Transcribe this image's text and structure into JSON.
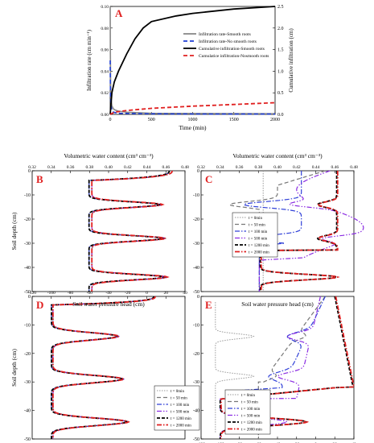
{
  "chart_data": [
    {
      "panel": "A",
      "type": "line",
      "xlabel": "Time (min)",
      "ylabel": "Infiltration rate (cm min⁻¹)",
      "y2label": "Cumulative infiltration (cm)",
      "xlim": [
        0,
        2000
      ],
      "ylim": [
        0,
        0.1
      ],
      "y2lim": [
        0,
        2.5
      ],
      "xticks": [
        0,
        500,
        1000,
        1500,
        2000
      ],
      "yticks": [
        0,
        0.02,
        0.04,
        0.06,
        0.08,
        0.1
      ],
      "yticklabels": [
        "0.00",
        "0.02",
        "0.04",
        "0.06",
        "0.08",
        "0.10"
      ],
      "y2ticks": [
        0,
        0.5,
        1,
        1.5,
        2,
        2.5
      ],
      "y2ticklabels": [
        "0.0",
        "0.5",
        "1.0",
        "1.5",
        "2.0",
        "2.5"
      ],
      "legend_position": "center-right",
      "series": [
        {
          "name": "Infiltration rate-Smooth roots",
          "axis": "left",
          "color": "#888888",
          "dash": "solid",
          "x": [
            0,
            2,
            5,
            10,
            20,
            40,
            60,
            100,
            200,
            500,
            1000,
            1500,
            2000
          ],
          "y": [
            0.1,
            0.06,
            0.03,
            0.015,
            0.008,
            0.005,
            0.004,
            0.003,
            0.002,
            0.001,
            0.0008,
            0.0007,
            0.0006
          ]
        },
        {
          "name": "Infiltration rate-No smooth roots",
          "axis": "left",
          "color": "#1f3fd6",
          "dash": "dash",
          "x": [
            0,
            2,
            5,
            10,
            20,
            40,
            100,
            500,
            1000,
            1500,
            2000
          ],
          "y": [
            0.05,
            0.03,
            0.015,
            0.008,
            0.004,
            0.002,
            0.001,
            0.0005,
            0.0004,
            0.0003,
            0.0003
          ]
        },
        {
          "name": "Cumulative infiltration-Smooth roots",
          "axis": "right",
          "color": "#000000",
          "dash": "solid",
          "x": [
            0,
            20,
            50,
            100,
            200,
            300,
            400,
            500,
            800,
            1000,
            1500,
            2000
          ],
          "y": [
            0,
            0.5,
            0.75,
            1.0,
            1.4,
            1.75,
            2.0,
            2.15,
            2.28,
            2.34,
            2.44,
            2.5
          ]
        },
        {
          "name": "Cumulatice infiltration-Nosmooth roots",
          "axis": "right",
          "color": "#e02020",
          "dash": "dash",
          "x": [
            0,
            50,
            200,
            500,
            1000,
            1500,
            2000
          ],
          "y": [
            0,
            0.05,
            0.09,
            0.14,
            0.19,
            0.23,
            0.27
          ]
        }
      ]
    },
    {
      "panel": "B",
      "type": "line",
      "top_axis_label": "Volumetric water content (cm³ cm⁻³)",
      "ylabel": "Soil depth (cm)",
      "xlim": [
        0.32,
        0.48
      ],
      "ylim": [
        -50,
        0
      ],
      "xticks": [
        0.32,
        0.34,
        0.36,
        0.38,
        0.4,
        0.42,
        0.44,
        0.46,
        0.48
      ],
      "xticklabels": [
        "0.32",
        "0.34",
        "0.36",
        "0.38",
        "0.40",
        "0.42",
        "0.44",
        "0.46",
        "0.48"
      ],
      "yticks": [
        0,
        -10,
        -20,
        -30,
        -40,
        -50
      ],
      "profile": {
        "base": 0.381,
        "top_value": 0.465,
        "top_depth": 4,
        "peaks": [
          [
            14,
            0.455
          ],
          [
            28,
            0.458
          ],
          [
            44,
            0.46
          ]
        ],
        "peak_width": 1.6
      },
      "legend": null
    },
    {
      "panel": "C",
      "type": "line",
      "top_axis_label": "Volumetric water content (cm³ cm⁻³)",
      "xlim": [
        0.32,
        0.48
      ],
      "ylim": [
        -50,
        0
      ],
      "xticks": [
        0.32,
        0.34,
        0.36,
        0.38,
        0.4,
        0.42,
        0.44,
        0.46,
        0.48
      ],
      "xticklabels": [
        "0.32",
        "0.34",
        "0.36",
        "0.38",
        "0.40",
        "0.42",
        "0.44",
        "0.46",
        "0.48"
      ],
      "yticks": [
        0,
        -10,
        -20,
        -30,
        -40,
        -50
      ],
      "legend_position": "bottom-left",
      "legend": [
        "t = 0min",
        "t = 50 min",
        "t = 100 min",
        "t = 500 min",
        "t = 1200 min",
        "t = 2000 min"
      ]
    },
    {
      "panel": "D",
      "type": "line",
      "bottom_axis_label": "Soil water pressure head (cm)",
      "ylabel": "Soil depth (cm)",
      "xlim": [
        -120,
        40
      ],
      "ylim": [
        -50,
        0
      ],
      "xticks": [
        -120,
        -100,
        -80,
        -60,
        -40,
        -20,
        0,
        20,
        40
      ],
      "yticks": [
        0,
        -10,
        -20,
        -30,
        -40,
        -50
      ],
      "profile": {
        "base": -99,
        "top_value": 8,
        "top_depth": 3,
        "peaks": [
          [
            14,
            -30
          ],
          [
            29,
            -25
          ],
          [
            44,
            -20
          ]
        ],
        "peak_width": 1.8
      },
      "legend_position": "bottom-right",
      "legend": [
        "t = 0min",
        "t = 50 min",
        "t = 100 min",
        "t = 500 min",
        "t = 1200 min",
        "t = 2000 min"
      ]
    },
    {
      "panel": "E",
      "type": "line",
      "xlim": [
        -120,
        40
      ],
      "ylim": [
        -50,
        0
      ],
      "xticks": [
        -120,
        -100,
        -80,
        -60,
        -40,
        -20,
        0,
        20,
        40
      ],
      "yticks": [
        0,
        -10,
        -20,
        -30,
        -40,
        -50
      ],
      "legend_position": "bottom-left",
      "legend": [
        "t = 0min",
        "t = 50 min",
        "t = 100 min",
        "t = 500 min",
        "t = 1200 min",
        "t = 2000 min"
      ]
    }
  ],
  "series_styles": [
    {
      "color": "#999999",
      "dash": "1.5,1.5",
      "width": 1
    },
    {
      "color": "#777777",
      "dash": "5,3",
      "width": 1.2
    },
    {
      "color": "#3040d8",
      "dash": "6,2,1.5,2",
      "width": 1.2
    },
    {
      "color": "#8a2be2",
      "dash": "6,2,1.5,2,1.5,2",
      "width": 1.2
    },
    {
      "color": "#000000",
      "dash": "4,2",
      "width": 1.8
    },
    {
      "color": "#e02020",
      "dash": "6,2,1.5,2",
      "width": 1.8
    }
  ]
}
